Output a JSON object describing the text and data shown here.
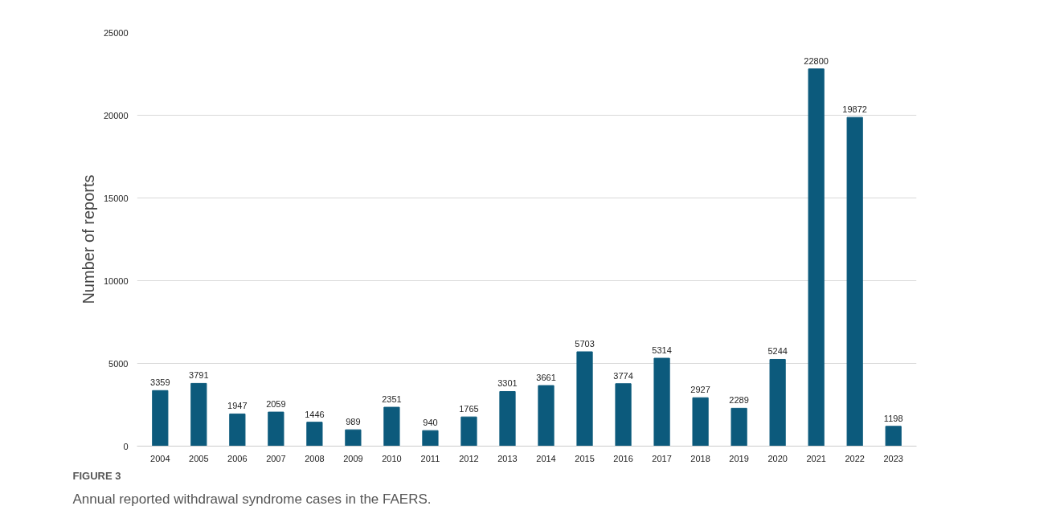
{
  "chart_data": {
    "type": "bar",
    "title": "FIGURE 3",
    "ylabel": "Number of reports",
    "annotations": [
      "Annual reported withdrawal syndrome cases in the FAERS."
    ],
    "categories": [
      "2004",
      "2005",
      "2006",
      "2007",
      "2008",
      "2009",
      "2010",
      "2011",
      "2012",
      "2013",
      "2014",
      "2015",
      "2016",
      "2017",
      "2018",
      "2019",
      "2020",
      "2021",
      "2022",
      "2023"
    ],
    "values": [
      3359,
      3791,
      1947,
      2059,
      1446,
      989,
      2351,
      940,
      1765,
      3301,
      3661,
      5703,
      3774,
      5314,
      2927,
      2289,
      5244,
      22800,
      19872,
      1198
    ],
    "color": "#0c5a7c",
    "ylim": [
      0,
      25000
    ],
    "yticks": [
      0,
      5000,
      10000,
      15000,
      20000,
      25000
    ],
    "grid": "y",
    "data_labels": true
  }
}
